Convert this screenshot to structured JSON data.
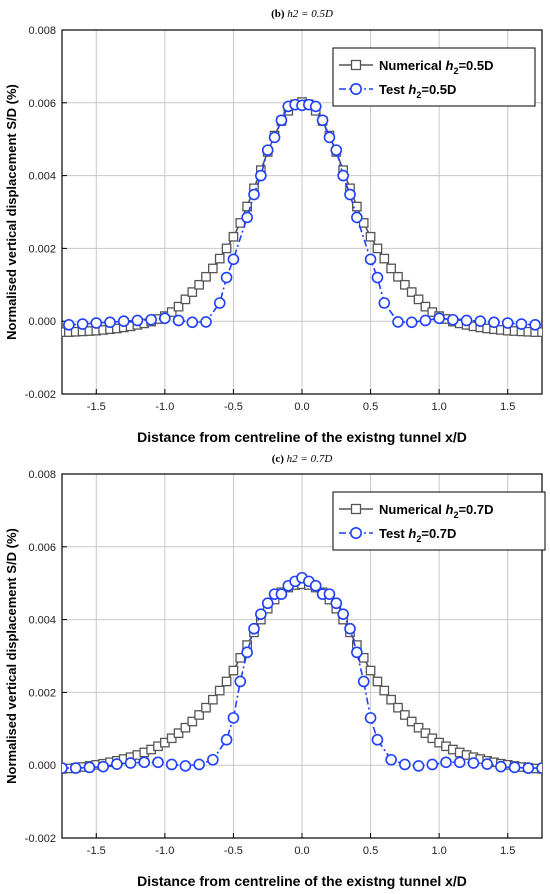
{
  "chart_data": [
    {
      "type": "line",
      "panel_prefix": "(b)",
      "panel_title": "h2 = 0.5D",
      "xlabel": "Distance from centreline of the existng tunnel x/D",
      "ylabel": "Normalised vertical displacement S/D (%)",
      "xlim": [
        -1.75,
        1.75
      ],
      "ylim": [
        -0.002,
        0.008
      ],
      "xticks": [
        "-1.5",
        "-1.0",
        "-0.5",
        "0.0",
        "0.5",
        "1.0",
        "1.5"
      ],
      "xtick_values": [
        -1.5,
        -1.0,
        -0.5,
        0.0,
        0.5,
        1.0,
        1.5
      ],
      "yticks": [
        "-0.002",
        "0.000",
        "0.002",
        "0.004",
        "0.006",
        "0.008"
      ],
      "ytick_values": [
        -0.002,
        0.0,
        0.002,
        0.004,
        0.006,
        0.008
      ],
      "grid": true,
      "legend_position": "top-right",
      "legend": [
        {
          "prefix": "Numerical ",
          "sym": "h",
          "sub": "2",
          "suffix": "=0.5D"
        },
        {
          "prefix": "Test ",
          "sym": "h",
          "sub": "2",
          "suffix": "=0.5D"
        }
      ],
      "series": [
        {
          "name": "Numerical h2=0.5D",
          "marker": "square",
          "color": "#555555",
          "x": [
            -1.75,
            -1.7,
            -1.65,
            -1.6,
            -1.55,
            -1.5,
            -1.45,
            -1.4,
            -1.35,
            -1.3,
            -1.25,
            -1.2,
            -1.15,
            -1.1,
            -1.05,
            -1.0,
            -0.95,
            -0.9,
            -0.85,
            -0.8,
            -0.75,
            -0.7,
            -0.65,
            -0.6,
            -0.55,
            -0.5,
            -0.45,
            -0.4,
            -0.35,
            -0.3,
            -0.25,
            -0.2,
            -0.15,
            -0.1,
            -0.05,
            0.0,
            0.05,
            0.1,
            0.15,
            0.2,
            0.25,
            0.3,
            0.35,
            0.4,
            0.45,
            0.5,
            0.55,
            0.6,
            0.65,
            0.7,
            0.75,
            0.8,
            0.85,
            0.9,
            0.95,
            1.0,
            1.05,
            1.1,
            1.15,
            1.2,
            1.25,
            1.3,
            1.35,
            1.4,
            1.45,
            1.5,
            1.55,
            1.6,
            1.65,
            1.7,
            1.75
          ],
          "y": [
            -0.0003,
            -0.0003,
            -0.00029,
            -0.00028,
            -0.00027,
            -0.00026,
            -0.00024,
            -0.00022,
            -0.0002,
            -0.00017,
            -0.00014,
            -0.0001,
            -6e-05,
            -1e-05,
            6e-05,
            0.00014,
            0.00025,
            0.0004,
            0.0006,
            0.0008,
            0.001,
            0.00122,
            0.00145,
            0.00172,
            0.002,
            0.00232,
            0.0027,
            0.00315,
            0.00365,
            0.00415,
            0.00465,
            0.0051,
            0.0055,
            0.00578,
            0.00596,
            0.00602,
            0.00596,
            0.00578,
            0.0055,
            0.0051,
            0.00465,
            0.00415,
            0.00365,
            0.00315,
            0.0027,
            0.00232,
            0.002,
            0.00172,
            0.00145,
            0.00122,
            0.001,
            0.0008,
            0.0006,
            0.0004,
            0.00025,
            0.00014,
            6e-05,
            -1e-05,
            -6e-05,
            -0.0001,
            -0.00014,
            -0.00017,
            -0.0002,
            -0.00022,
            -0.00024,
            -0.00026,
            -0.00027,
            -0.00028,
            -0.00029,
            -0.0003,
            -0.0003
          ]
        },
        {
          "name": "Test h2=0.5D",
          "marker": "circle",
          "color": "#1f3fff",
          "x": [
            -1.7,
            -1.6,
            -1.5,
            -1.4,
            -1.3,
            -1.2,
            -1.1,
            -1.0,
            -0.9,
            -0.8,
            -0.7,
            -0.6,
            -0.55,
            -0.5,
            -0.4,
            -0.35,
            -0.3,
            -0.25,
            -0.2,
            -0.15,
            -0.1,
            -0.05,
            0.0,
            0.05,
            0.1,
            0.15,
            0.2,
            0.25,
            0.3,
            0.35,
            0.4,
            0.5,
            0.55,
            0.6,
            0.7,
            0.8,
            0.9,
            1.0,
            1.1,
            1.2,
            1.3,
            1.4,
            1.5,
            1.6,
            1.7
          ],
          "y": [
            -0.0001,
            -8e-05,
            -5e-05,
            -3e-05,
            0.0,
            2e-05,
            4e-05,
            8e-05,
            2e-05,
            -3e-05,
            -2e-05,
            0.0005,
            0.0012,
            0.0017,
            0.00285,
            0.00348,
            0.004,
            0.0047,
            0.00505,
            0.00552,
            0.0059,
            0.00595,
            0.00593,
            0.00595,
            0.0059,
            0.00552,
            0.00505,
            0.0047,
            0.004,
            0.00348,
            0.00285,
            0.0017,
            0.0012,
            0.0005,
            -2e-05,
            -3e-05,
            2e-05,
            8e-05,
            4e-05,
            2e-05,
            0.0,
            -3e-05,
            -5e-05,
            -8e-05,
            -0.0001
          ]
        }
      ]
    },
    {
      "type": "line",
      "panel_prefix": "(c)",
      "panel_title": "h2 = 0.7D",
      "xlabel": "Distance from centreline of the existng tunnel x/D",
      "ylabel": "Normalised vertical displacement S/D (%)",
      "xlim": [
        -1.75,
        1.75
      ],
      "ylim": [
        -0.002,
        0.008
      ],
      "xticks": [
        "-1.5",
        "-1.0",
        "-0.5",
        "0.0",
        "0.5",
        "1.0",
        "1.5"
      ],
      "xtick_values": [
        -1.5,
        -1.0,
        -0.5,
        0.0,
        0.5,
        1.0,
        1.5
      ],
      "yticks": [
        "-0.002",
        "0.000",
        "0.002",
        "0.004",
        "0.006",
        "0.008"
      ],
      "ytick_values": [
        -0.002,
        0.0,
        0.002,
        0.004,
        0.006,
        0.008
      ],
      "grid": true,
      "legend_position": "top-right",
      "legend": [
        {
          "prefix": "Numerical ",
          "sym": "h",
          "sub": "2",
          "suffix": "=0.7D"
        },
        {
          "prefix": "Test ",
          "sym": "h",
          "sub": "2",
          "suffix": "=0.7D"
        }
      ],
      "series": [
        {
          "name": "Numerical h2=0.7D",
          "marker": "square",
          "color": "#555555",
          "x": [
            -1.75,
            -1.7,
            -1.65,
            -1.6,
            -1.55,
            -1.5,
            -1.45,
            -1.4,
            -1.35,
            -1.3,
            -1.25,
            -1.2,
            -1.15,
            -1.1,
            -1.05,
            -1.0,
            -0.95,
            -0.9,
            -0.85,
            -0.8,
            -0.75,
            -0.7,
            -0.65,
            -0.6,
            -0.55,
            -0.5,
            -0.45,
            -0.4,
            -0.35,
            -0.3,
            -0.25,
            -0.2,
            -0.15,
            -0.1,
            -0.05,
            0.0,
            0.05,
            0.1,
            0.15,
            0.2,
            0.25,
            0.3,
            0.35,
            0.4,
            0.45,
            0.5,
            0.55,
            0.6,
            0.65,
            0.7,
            0.75,
            0.8,
            0.85,
            0.9,
            0.95,
            1.0,
            1.05,
            1.1,
            1.15,
            1.2,
            1.25,
            1.3,
            1.35,
            1.4,
            1.45,
            1.5,
            1.55,
            1.6,
            1.65,
            1.7,
            1.75
          ],
          "y": [
            -0.0001,
            -9e-05,
            -7e-05,
            -5e-05,
            -2e-05,
            1e-05,
            4e-05,
            8e-05,
            0.00012,
            0.00017,
            0.00022,
            0.00028,
            0.00035,
            0.00043,
            0.00052,
            0.00062,
            0.00074,
            0.00088,
            0.00103,
            0.0012,
            0.00138,
            0.00158,
            0.0018,
            0.00205,
            0.0023,
            0.0026,
            0.00295,
            0.0033,
            0.00365,
            0.004,
            0.0043,
            0.00455,
            0.00475,
            0.00488,
            0.00495,
            0.00497,
            0.00495,
            0.00488,
            0.00475,
            0.00455,
            0.0043,
            0.004,
            0.00365,
            0.0033,
            0.00295,
            0.0026,
            0.0023,
            0.00205,
            0.0018,
            0.00158,
            0.00138,
            0.0012,
            0.00103,
            0.00088,
            0.00074,
            0.00062,
            0.00052,
            0.00043,
            0.00035,
            0.00028,
            0.00022,
            0.00017,
            0.00012,
            8e-05,
            4e-05,
            1e-05,
            -2e-05,
            -5e-05,
            -7e-05,
            -9e-05,
            -0.0001
          ]
        },
        {
          "name": "Test h2=0.7D",
          "marker": "circle",
          "color": "#1f3fff",
          "x": [
            -1.75,
            -1.65,
            -1.55,
            -1.45,
            -1.35,
            -1.25,
            -1.15,
            -1.05,
            -0.95,
            -0.85,
            -0.75,
            -0.65,
            -0.55,
            -0.5,
            -0.45,
            -0.4,
            -0.35,
            -0.3,
            -0.25,
            -0.2,
            -0.15,
            -0.1,
            -0.05,
            0.0,
            0.05,
            0.1,
            0.15,
            0.2,
            0.25,
            0.3,
            0.35,
            0.4,
            0.45,
            0.5,
            0.55,
            0.65,
            0.75,
            0.85,
            0.95,
            1.05,
            1.15,
            1.25,
            1.35,
            1.45,
            1.55,
            1.65,
            1.75
          ],
          "y": [
            -8e-05,
            -8e-05,
            -6e-05,
            -4e-05,
            3e-05,
            6e-05,
            8e-05,
            8e-05,
            2e-05,
            -2e-05,
            2e-05,
            0.00015,
            0.0007,
            0.0013,
            0.0023,
            0.0031,
            0.00375,
            0.00415,
            0.00445,
            0.0047,
            0.0047,
            0.00493,
            0.00505,
            0.00515,
            0.00505,
            0.00493,
            0.0047,
            0.0047,
            0.00445,
            0.00415,
            0.00375,
            0.0031,
            0.0023,
            0.0013,
            0.0007,
            0.00015,
            2e-05,
            -2e-05,
            2e-05,
            8e-05,
            8e-05,
            6e-05,
            3e-05,
            -4e-05,
            -6e-05,
            -8e-05,
            -8e-05
          ]
        }
      ]
    }
  ]
}
